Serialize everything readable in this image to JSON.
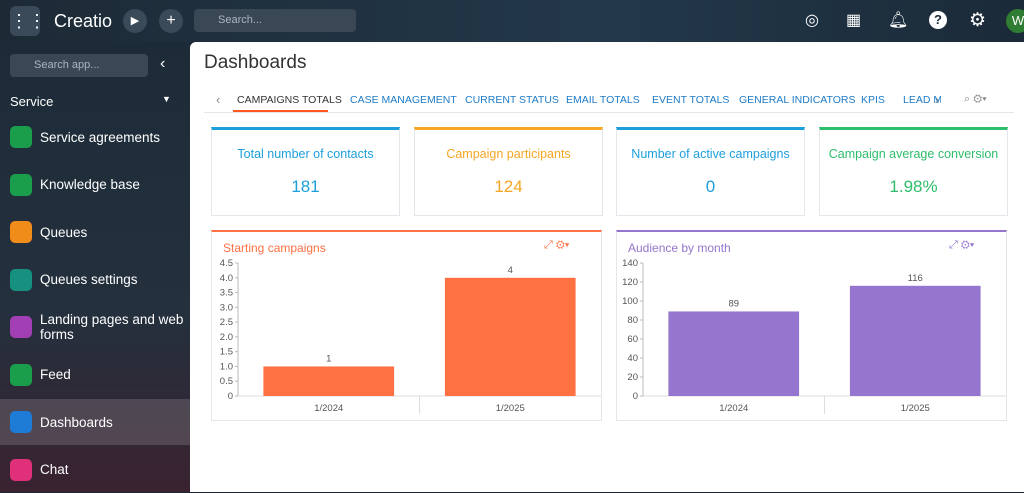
{
  "app": {
    "logo": "Creatio",
    "search_placeholder": "Search...",
    "avatar": "W"
  },
  "sidebar": {
    "search_placeholder": "Search app...",
    "section": "Service",
    "items": [
      "Service agreements",
      "Knowledge base",
      "Queues",
      "Queues settings",
      "Landing pages and web forms",
      "Feed",
      "Dashboards",
      "Chat"
    ]
  },
  "page": {
    "title": "Dashboards",
    "tabs": [
      "CAMPAIGNS TOTALS",
      "CASE MANAGEMENT",
      "CURRENT STATUS",
      "EMAIL TOTALS",
      "EVENT TOTALS",
      "GENERAL INDICATORS",
      "KPIS",
      "LEAD MA"
    ],
    "kpis": [
      {
        "label": "Total number of contacts",
        "value": "181",
        "color": "#1e9fdc"
      },
      {
        "label": "Campaign participants",
        "value": "124",
        "color": "#f5a623"
      },
      {
        "label": "Number of active campaigns",
        "value": "0",
        "color": "#1e9fdc"
      },
      {
        "label": "Campaign average conversion",
        "value": "1.98%",
        "color": "#2ebd6b"
      }
    ]
  },
  "chart_data": [
    {
      "type": "bar",
      "title": "Starting campaigns",
      "categories": [
        "1/2024",
        "1/2025"
      ],
      "values": [
        1,
        4
      ],
      "color": "#ff7043",
      "ylim": [
        0,
        4.5
      ],
      "yticks": [
        0,
        0.5,
        {
          "value": 1,
          "label": "1.0"
        },
        1.5,
        {
          "value": 2,
          "label": "2.0"
        },
        2.5,
        {
          "value": 3,
          "label": "3.0"
        },
        3.5,
        {
          "value": 4,
          "label": "4.0"
        },
        4.5
      ]
    },
    {
      "type": "bar",
      "title": "Audience by month",
      "categories": [
        "1/2024",
        "1/2025"
      ],
      "values": [
        89,
        116
      ],
      "color": "#9575cd",
      "ylim": [
        0,
        140
      ],
      "yticks": [
        0,
        20,
        40,
        60,
        80,
        100,
        120,
        140
      ]
    }
  ]
}
